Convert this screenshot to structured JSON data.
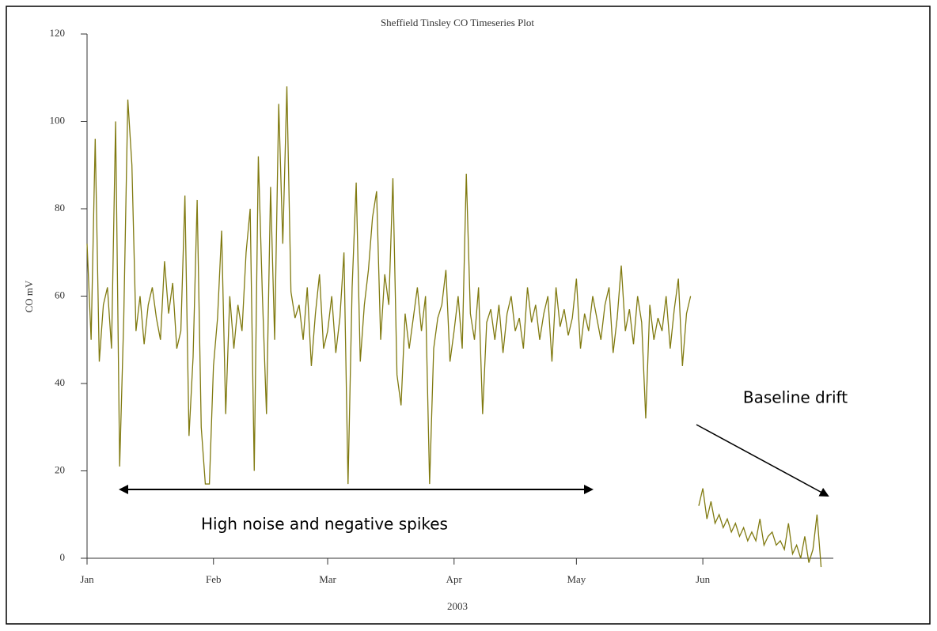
{
  "chart_data": {
    "type": "line",
    "title": "Sheffield Tinsley CO Timeseries Plot",
    "y_label": "CO mV",
    "x_label": "2003",
    "annotations": [
      "High noise and negative spikes",
      "Baseline drift"
    ],
    "color": "#807a10",
    "xlim": [
      0,
      183
    ],
    "xticks": [
      {
        "value": 0,
        "label": "Jan"
      },
      {
        "value": 31,
        "label": "Feb"
      },
      {
        "value": 59,
        "label": "Mar"
      },
      {
        "value": 90,
        "label": "Apr"
      },
      {
        "value": 120,
        "label": "May"
      },
      {
        "value": 151,
        "label": "Jun"
      }
    ],
    "ylim": [
      0,
      120
    ],
    "yticks": [
      0,
      20,
      40,
      60,
      80,
      100,
      120
    ],
    "grid": false,
    "x": [
      0,
      1,
      2,
      3,
      4,
      5,
      6,
      7,
      8,
      9,
      10,
      11,
      12,
      13,
      14,
      15,
      16,
      17,
      18,
      19,
      20,
      21,
      22,
      23,
      24,
      25,
      26,
      27,
      28,
      29,
      30,
      31,
      32,
      33,
      34,
      35,
      36,
      37,
      38,
      39,
      40,
      41,
      42,
      43,
      44,
      45,
      46,
      47,
      48,
      49,
      50,
      51,
      52,
      53,
      54,
      55,
      56,
      57,
      58,
      59,
      60,
      61,
      62,
      63,
      64,
      65,
      66,
      67,
      68,
      69,
      70,
      71,
      72,
      73,
      74,
      75,
      76,
      77,
      78,
      79,
      80,
      81,
      82,
      83,
      84,
      85,
      86,
      87,
      88,
      89,
      90,
      91,
      92,
      93,
      94,
      95,
      96,
      97,
      98,
      99,
      100,
      101,
      102,
      103,
      104,
      105,
      106,
      107,
      108,
      109,
      110,
      111,
      112,
      113,
      114,
      115,
      116,
      117,
      118,
      119,
      120,
      121,
      122,
      123,
      124,
      125,
      126,
      127,
      128,
      129,
      130,
      131,
      132,
      133,
      134,
      135,
      136,
      137,
      138,
      139,
      140,
      141,
      142,
      143,
      144,
      145,
      146,
      147,
      148,
      149,
      150,
      151,
      152,
      153,
      154,
      155,
      156,
      157,
      158,
      159,
      160,
      161,
      162,
      163,
      164,
      165,
      166,
      167,
      168,
      169,
      170,
      171,
      172,
      173,
      174,
      175,
      176,
      177,
      178,
      179,
      180
    ],
    "values": [
      72,
      50,
      96,
      45,
      58,
      62,
      48,
      100,
      21,
      55,
      105,
      90,
      52,
      60,
      49,
      58,
      62,
      55,
      50,
      68,
      56,
      63,
      48,
      52,
      83,
      28,
      46,
      82,
      30,
      17,
      17,
      44,
      55,
      75,
      33,
      60,
      48,
      58,
      52,
      70,
      80,
      20,
      92,
      60,
      33,
      85,
      50,
      104,
      72,
      108,
      61,
      55,
      58,
      50,
      62,
      44,
      56,
      65,
      48,
      52,
      60,
      47,
      55,
      70,
      17,
      62,
      86,
      45,
      58,
      66,
      78,
      84,
      50,
      65,
      58,
      87,
      42,
      35,
      56,
      48,
      55,
      62,
      52,
      60,
      17,
      48,
      55,
      58,
      66,
      45,
      52,
      60,
      48,
      88,
      56,
      50,
      62,
      33,
      54,
      57,
      50,
      58,
      47,
      56,
      60,
      52,
      55,
      48,
      62,
      54,
      58,
      50,
      56,
      60,
      45,
      62,
      53,
      57,
      51,
      55,
      64,
      48,
      56,
      52,
      60,
      55,
      50,
      58,
      62,
      47,
      55,
      67,
      52,
      57,
      49,
      60,
      54,
      32,
      58,
      50,
      55,
      52,
      60,
      48,
      57,
      64,
      44,
      56,
      60,
      null,
      12,
      16,
      9,
      13,
      8,
      10,
      7,
      9,
      6,
      8,
      5,
      7,
      4,
      6,
      4,
      9,
      3,
      5,
      6,
      3,
      4,
      2,
      8,
      1,
      3,
      0,
      5,
      -1,
      2,
      10,
      -2
    ]
  }
}
